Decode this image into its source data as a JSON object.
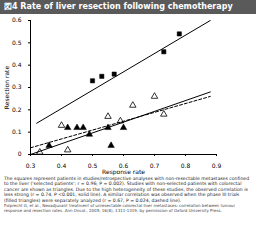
{
  "chart_data": {
    "type": "scatter",
    "title": "図4 Rate of liver resection following chemotherapy",
    "xlabel": "Response rate",
    "ylabel": "Resection rate",
    "xlim": [
      0.3,
      0.9
    ],
    "ylim": [
      0,
      0.6
    ],
    "xticks": [
      0.3,
      0.4,
      0.5,
      0.6,
      0.7,
      0.8,
      0.9
    ],
    "yticks": [
      0,
      0.1,
      0.2,
      0.3,
      0.4,
      0.5,
      0.6
    ],
    "series": [
      {
        "type": "scatter",
        "marker": "square",
        "color": "#000000",
        "x": [
          0.5,
          0.53,
          0.57,
          0.73,
          0.78
        ],
        "values": [
          0.33,
          0.35,
          0.36,
          0.46,
          0.54
        ]
      },
      {
        "type": "scatter",
        "marker": "triangle",
        "color": "#000000",
        "x": [
          0.36,
          0.42,
          0.45,
          0.47,
          0.49,
          0.55,
          0.56,
          0.6
        ],
        "values": [
          0.04,
          0.12,
          0.12,
          0.12,
          0.09,
          0.12,
          0.04,
          0.12
        ]
      },
      {
        "type": "scatter",
        "marker": "triangle-open",
        "color": "#000000",
        "x": [
          0.33,
          0.4,
          0.42,
          0.55,
          0.59,
          0.63,
          0.7,
          0.73
        ],
        "values": [
          0.01,
          0.13,
          0.02,
          0.17,
          0.15,
          0.22,
          0.26,
          0.18
        ]
      },
      {
        "type": "line",
        "line_style": "solid",
        "color": "#000000",
        "x": [
          0.32,
          0.88
        ],
        "values": [
          0.14,
          0.6
        ]
      },
      {
        "type": "line",
        "line_style": "solid",
        "color": "#000000",
        "x": [
          0.3,
          0.88
        ],
        "values": [
          0.0,
          0.28
        ]
      },
      {
        "type": "line",
        "line_style": "dashed",
        "color": "#000000",
        "x": [
          0.3,
          0.88
        ],
        "values": [
          0.03,
          0.26
        ]
      }
    ],
    "caption": "The squares represent patients in studies/retrospective analyses with non-resectable metastases confined to the liver ('selected patients'; r = 0.96; P = 0.002). Studies with non-selected patients with colorectal cancer are shown as triangles. Due to the high heterogeneity of these studies, the observed correlation is less strong (r = 0.74, P <0.001, solid line). A similar correlation was observed when the phase III trials (filled triangles) were separately analyzed (r = 0.67, P = 0.024, dashed line).",
    "source": "Folprecht G, et al., Neoadjuvant treatment of unresectable colorectal liver metastases: correlation between tumour response and resection rates. Ann Oncol., 2005; 16(8), 1311-1319, by permission of Oxford University Press."
  }
}
